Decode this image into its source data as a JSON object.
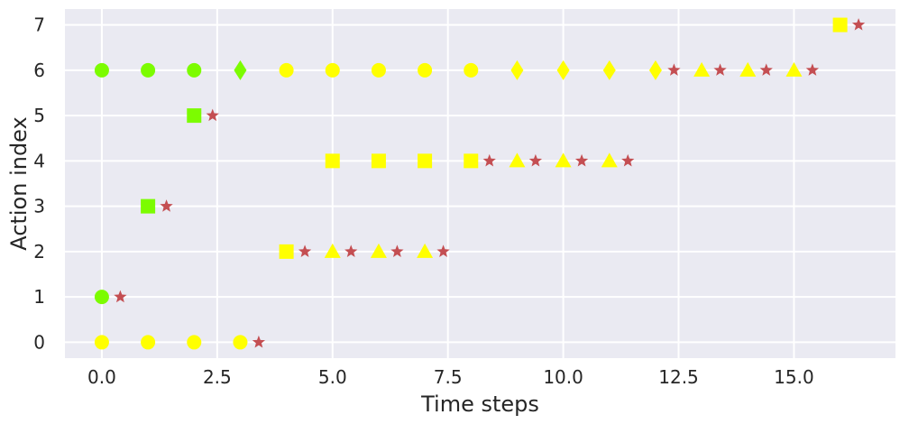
{
  "chart_data": {
    "type": "scatter",
    "title": "",
    "xlabel": "Time steps",
    "ylabel": "Action index",
    "xlim": [
      -0.8,
      17.2
    ],
    "ylim": [
      -0.35,
      7.35
    ],
    "grid": true,
    "legend": "none",
    "x_ticks": [
      0.0,
      2.5,
      5.0,
      7.5,
      10.0,
      12.5,
      15.0
    ],
    "x_tick_labels": [
      "0.0",
      "2.5",
      "5.0",
      "7.5",
      "10.0",
      "12.5",
      "15.0"
    ],
    "y_ticks": [
      0,
      1,
      2,
      3,
      4,
      5,
      6,
      7
    ],
    "y_tick_labels": [
      "0",
      "1",
      "2",
      "3",
      "4",
      "5",
      "6",
      "7"
    ],
    "colors": {
      "background": "#eaeaf2",
      "grid": "#ffffff",
      "green": "#7cfc00",
      "yellow": "#ffff00",
      "star": "#c44e52"
    },
    "points": [
      {
        "x": 0,
        "y": 6,
        "marker": "circle",
        "color": "green"
      },
      {
        "x": 1,
        "y": 6,
        "marker": "circle",
        "color": "green"
      },
      {
        "x": 2,
        "y": 6,
        "marker": "circle",
        "color": "green"
      },
      {
        "x": 3,
        "y": 6,
        "marker": "diamond",
        "color": "green"
      },
      {
        "x": 4,
        "y": 6,
        "marker": "circle",
        "color": "yellow"
      },
      {
        "x": 5,
        "y": 6,
        "marker": "circle",
        "color": "yellow"
      },
      {
        "x": 6,
        "y": 6,
        "marker": "circle",
        "color": "yellow"
      },
      {
        "x": 7,
        "y": 6,
        "marker": "circle",
        "color": "yellow"
      },
      {
        "x": 8,
        "y": 6,
        "marker": "circle",
        "color": "yellow"
      },
      {
        "x": 9,
        "y": 6,
        "marker": "diamond",
        "color": "yellow"
      },
      {
        "x": 10,
        "y": 6,
        "marker": "diamond",
        "color": "yellow"
      },
      {
        "x": 11,
        "y": 6,
        "marker": "diamond",
        "color": "yellow"
      },
      {
        "x": 12,
        "y": 6,
        "marker": "diamond",
        "color": "yellow"
      },
      {
        "x": 12.4,
        "y": 6,
        "marker": "star",
        "color": "star"
      },
      {
        "x": 13,
        "y": 6,
        "marker": "triangle",
        "color": "yellow"
      },
      {
        "x": 13.4,
        "y": 6,
        "marker": "star",
        "color": "star"
      },
      {
        "x": 14,
        "y": 6,
        "marker": "triangle",
        "color": "yellow"
      },
      {
        "x": 14.4,
        "y": 6,
        "marker": "star",
        "color": "star"
      },
      {
        "x": 15,
        "y": 6,
        "marker": "triangle",
        "color": "yellow"
      },
      {
        "x": 15.4,
        "y": 6,
        "marker": "star",
        "color": "star"
      },
      {
        "x": 16,
        "y": 7,
        "marker": "square",
        "color": "yellow"
      },
      {
        "x": 16.4,
        "y": 7,
        "marker": "star",
        "color": "star"
      },
      {
        "x": 2,
        "y": 5,
        "marker": "square",
        "color": "green"
      },
      {
        "x": 2.4,
        "y": 5,
        "marker": "star",
        "color": "star"
      },
      {
        "x": 5,
        "y": 4,
        "marker": "square",
        "color": "yellow"
      },
      {
        "x": 6,
        "y": 4,
        "marker": "square",
        "color": "yellow"
      },
      {
        "x": 7,
        "y": 4,
        "marker": "square",
        "color": "yellow"
      },
      {
        "x": 8,
        "y": 4,
        "marker": "square",
        "color": "yellow"
      },
      {
        "x": 8.4,
        "y": 4,
        "marker": "star",
        "color": "star"
      },
      {
        "x": 9,
        "y": 4,
        "marker": "triangle",
        "color": "yellow"
      },
      {
        "x": 9.4,
        "y": 4,
        "marker": "star",
        "color": "star"
      },
      {
        "x": 10,
        "y": 4,
        "marker": "triangle",
        "color": "yellow"
      },
      {
        "x": 10.4,
        "y": 4,
        "marker": "star",
        "color": "star"
      },
      {
        "x": 11,
        "y": 4,
        "marker": "triangle",
        "color": "yellow"
      },
      {
        "x": 11.4,
        "y": 4,
        "marker": "star",
        "color": "star"
      },
      {
        "x": 1,
        "y": 3,
        "marker": "square",
        "color": "green"
      },
      {
        "x": 1.4,
        "y": 3,
        "marker": "star",
        "color": "star"
      },
      {
        "x": 4,
        "y": 2,
        "marker": "square",
        "color": "yellow"
      },
      {
        "x": 4.4,
        "y": 2,
        "marker": "star",
        "color": "star"
      },
      {
        "x": 5,
        "y": 2,
        "marker": "triangle",
        "color": "yellow"
      },
      {
        "x": 5.4,
        "y": 2,
        "marker": "star",
        "color": "star"
      },
      {
        "x": 6,
        "y": 2,
        "marker": "triangle",
        "color": "yellow"
      },
      {
        "x": 6.4,
        "y": 2,
        "marker": "star",
        "color": "star"
      },
      {
        "x": 7,
        "y": 2,
        "marker": "triangle",
        "color": "yellow"
      },
      {
        "x": 7.4,
        "y": 2,
        "marker": "star",
        "color": "star"
      },
      {
        "x": 0,
        "y": 1,
        "marker": "circle",
        "color": "green"
      },
      {
        "x": 0.4,
        "y": 1,
        "marker": "star",
        "color": "star"
      },
      {
        "x": 0,
        "y": 0,
        "marker": "circle",
        "color": "yellow"
      },
      {
        "x": 1,
        "y": 0,
        "marker": "circle",
        "color": "yellow"
      },
      {
        "x": 2,
        "y": 0,
        "marker": "circle",
        "color": "yellow"
      },
      {
        "x": 3,
        "y": 0,
        "marker": "circle",
        "color": "yellow"
      },
      {
        "x": 3.4,
        "y": 0,
        "marker": "star",
        "color": "star"
      }
    ]
  }
}
